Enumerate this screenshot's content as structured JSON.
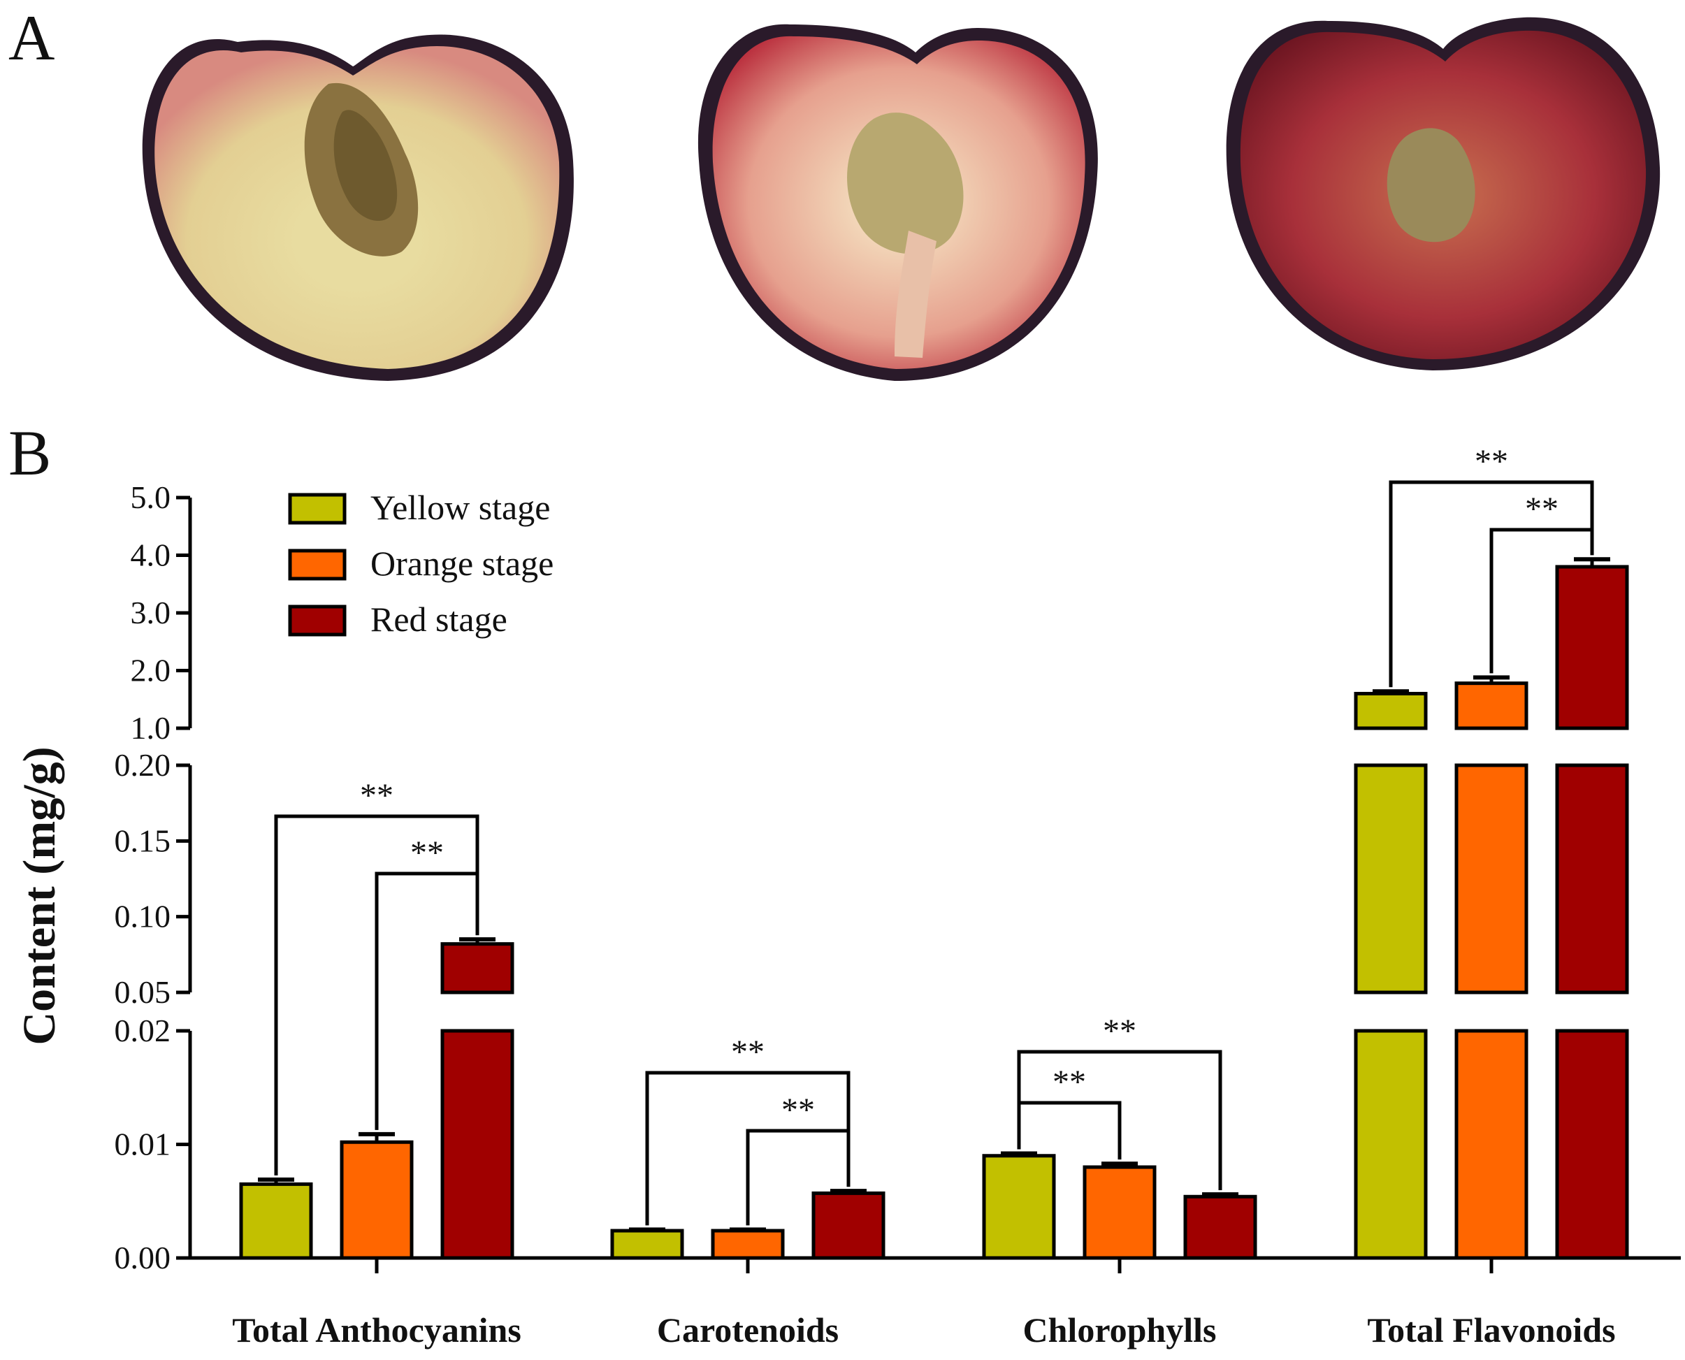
{
  "panels": {
    "a": "A",
    "b": "B"
  },
  "fruit_photos": [
    {
      "name": "yellow-stage-fruit",
      "flesh": "#e8dca0",
      "blush": "#d87a7a",
      "skin": "#2a1a2a",
      "pit": "#8a7240"
    },
    {
      "name": "orange-stage-fruit",
      "flesh": "#efc7b0",
      "blush": "#c03040",
      "skin": "#2a1a2a",
      "pit": "#b8a870"
    },
    {
      "name": "red-stage-fruit",
      "flesh": "#a8303a",
      "blush": "#7a1822",
      "skin": "#2a1a2a",
      "pit": "#9a8a5a"
    }
  ],
  "chart_data": {
    "type": "bar",
    "ylabel": "Content (mg/g)",
    "categories": [
      "Total Anthocyanins",
      "Carotenoids",
      "Chlorophylls",
      "Total Flavonoids"
    ],
    "series": [
      {
        "name": "Yellow stage",
        "color": "#c2c000",
        "values": [
          0.0065,
          0.0024,
          0.009,
          1.6
        ],
        "errors": [
          0.0004,
          0.0001,
          0.0002,
          0.04
        ]
      },
      {
        "name": "Orange stage",
        "color": "#ff6600",
        "values": [
          0.0102,
          0.0024,
          0.008,
          1.78
        ],
        "errors": [
          0.0007,
          0.0001,
          0.0003,
          0.1
        ]
      },
      {
        "name": "Red stage",
        "color": "#a00000",
        "values": [
          0.082,
          0.0057,
          0.0054,
          3.8
        ],
        "errors": [
          0.003,
          0.0002,
          0.0002,
          0.13
        ]
      }
    ],
    "axis_segments": [
      {
        "range": [
          0.0,
          0.02
        ],
        "ticks": [
          0.0,
          0.01,
          0.02
        ],
        "labels": [
          "0.00",
          "0.01",
          "0.02"
        ]
      },
      {
        "range": [
          0.05,
          0.2
        ],
        "ticks": [
          0.05,
          0.1,
          0.15,
          0.2
        ],
        "labels": [
          "0.05",
          "0.10",
          "0.15",
          "0.20"
        ]
      },
      {
        "range": [
          1.0,
          5.0
        ],
        "ticks": [
          1.0,
          2.0,
          3.0,
          4.0,
          5.0
        ],
        "labels": [
          "1.0",
          "2.0",
          "3.0",
          "4.0",
          "5.0"
        ]
      }
    ],
    "significance": [
      {
        "category": 0,
        "from": 0,
        "to": 2,
        "label": "**"
      },
      {
        "category": 0,
        "from": 1,
        "to": 2,
        "label": "**"
      },
      {
        "category": 1,
        "from": 0,
        "to": 2,
        "label": "**"
      },
      {
        "category": 1,
        "from": 1,
        "to": 2,
        "label": "**"
      },
      {
        "category": 2,
        "from": 0,
        "to": 2,
        "label": "**"
      },
      {
        "category": 2,
        "from": 0,
        "to": 1,
        "label": "**"
      },
      {
        "category": 3,
        "from": 0,
        "to": 2,
        "label": "**"
      },
      {
        "category": 3,
        "from": 1,
        "to": 2,
        "label": "**"
      }
    ],
    "legend_position": "top-left"
  }
}
